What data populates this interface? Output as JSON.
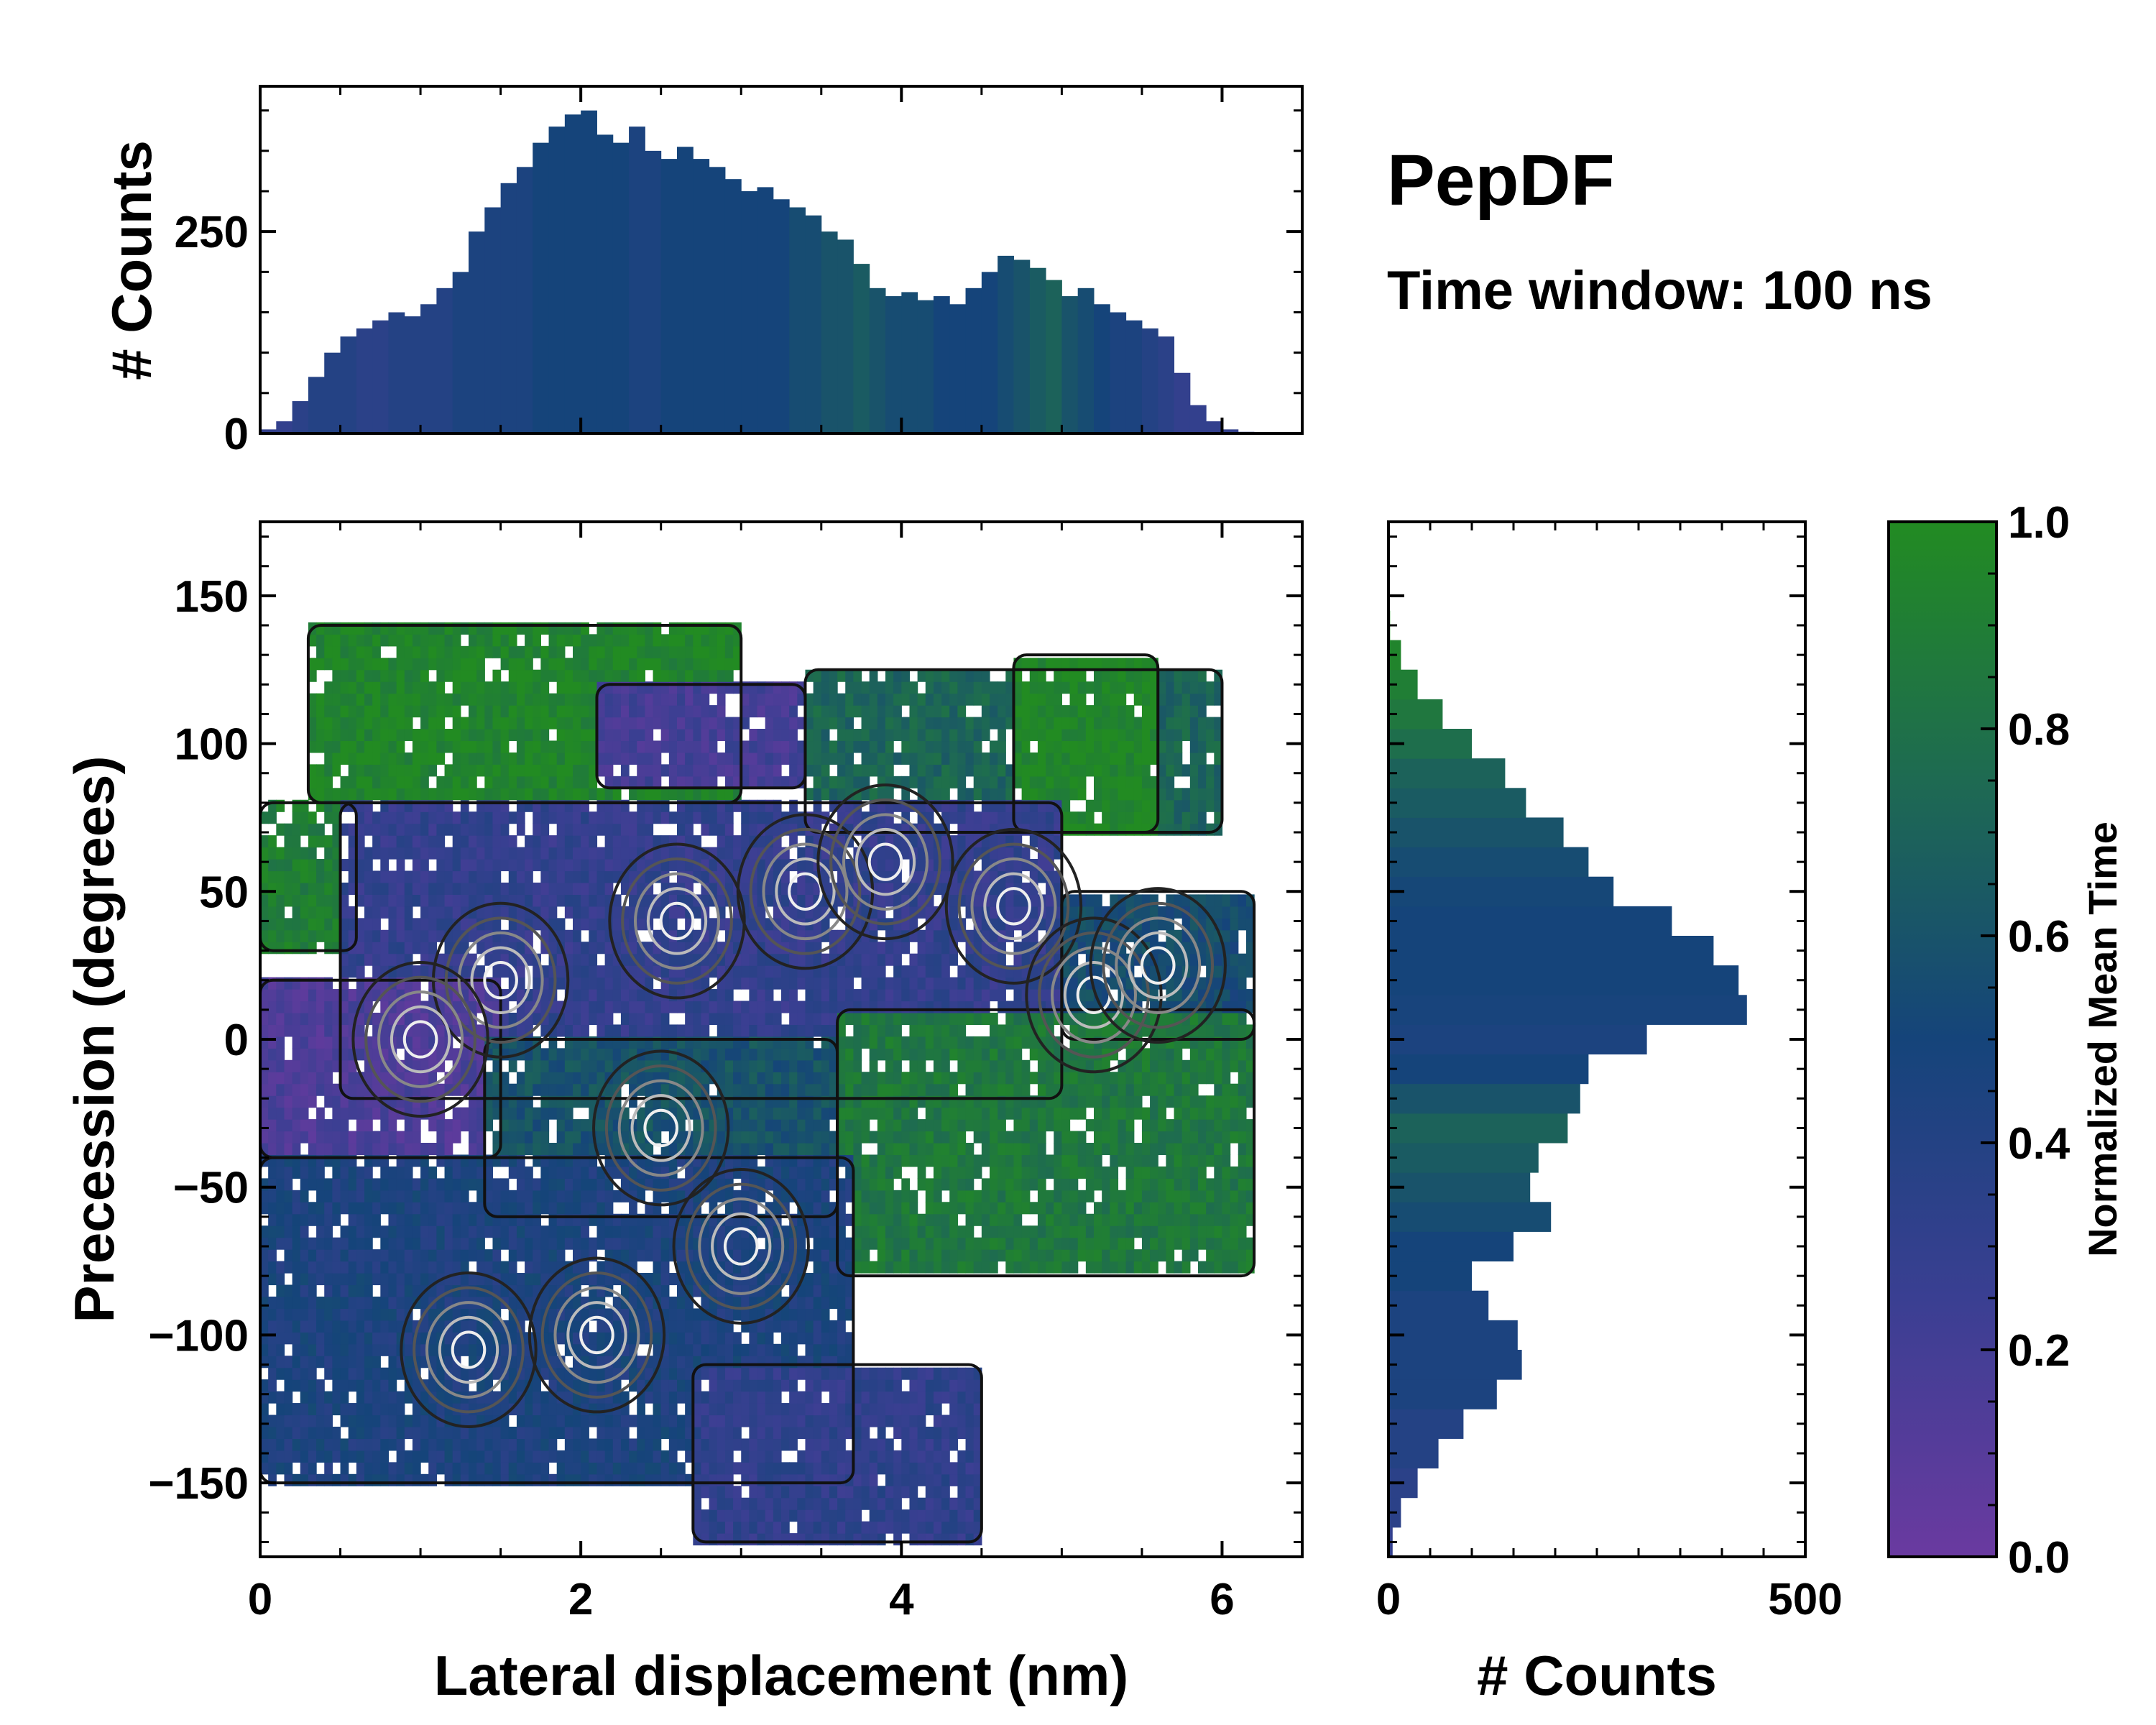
{
  "title": "PepDF",
  "subtitle": "Time window: 100 ns",
  "colors": {
    "low": "#6a3aa0",
    "mid": "#15447a",
    "high": "#228b22",
    "frame": "#000000"
  },
  "chart_data": [
    {
      "id": "top-histogram",
      "type": "bar",
      "ylabel": "# Counts",
      "xlim": [
        0,
        6.5
      ],
      "ylim": [
        0,
        430
      ],
      "yticks": [
        0,
        250
      ],
      "x_centers": [
        0.05,
        0.15,
        0.25,
        0.35,
        0.45,
        0.55,
        0.65,
        0.75,
        0.85,
        0.95,
        1.05,
        1.15,
        1.25,
        1.35,
        1.45,
        1.55,
        1.65,
        1.75,
        1.85,
        1.95,
        2.05,
        2.15,
        2.25,
        2.35,
        2.45,
        2.55,
        2.65,
        2.75,
        2.85,
        2.95,
        3.05,
        3.15,
        3.25,
        3.35,
        3.45,
        3.55,
        3.65,
        3.75,
        3.85,
        3.95,
        4.05,
        4.15,
        4.25,
        4.35,
        4.45,
        4.55,
        4.65,
        4.75,
        4.85,
        4.95,
        5.05,
        5.15,
        5.25,
        5.35,
        5.45,
        5.55,
        5.65,
        5.75,
        5.85,
        5.95,
        6.05,
        6.15,
        6.25,
        6.35,
        6.45
      ],
      "values": [
        5,
        15,
        40,
        70,
        100,
        120,
        130,
        140,
        150,
        145,
        160,
        180,
        200,
        250,
        280,
        310,
        330,
        360,
        380,
        395,
        400,
        370,
        360,
        380,
        350,
        340,
        355,
        340,
        330,
        315,
        300,
        305,
        290,
        280,
        270,
        250,
        240,
        210,
        180,
        170,
        175,
        165,
        170,
        160,
        180,
        200,
        220,
        215,
        205,
        190,
        170,
        180,
        160,
        150,
        140,
        130,
        120,
        75,
        35,
        15,
        5,
        2,
        1,
        0,
        0
      ],
      "mean_time": [
        0.3,
        0.3,
        0.35,
        0.4,
        0.4,
        0.4,
        0.35,
        0.35,
        0.4,
        0.4,
        0.4,
        0.4,
        0.45,
        0.45,
        0.45,
        0.45,
        0.45,
        0.5,
        0.5,
        0.5,
        0.5,
        0.5,
        0.5,
        0.45,
        0.45,
        0.5,
        0.5,
        0.5,
        0.5,
        0.5,
        0.5,
        0.5,
        0.5,
        0.55,
        0.55,
        0.6,
        0.6,
        0.65,
        0.6,
        0.55,
        0.55,
        0.55,
        0.5,
        0.5,
        0.5,
        0.5,
        0.55,
        0.6,
        0.65,
        0.7,
        0.6,
        0.55,
        0.5,
        0.45,
        0.45,
        0.4,
        0.35,
        0.3,
        0.3,
        0.3,
        0.3,
        0.3,
        0.3,
        0.3,
        0.3
      ]
    },
    {
      "id": "main-2d-histogram",
      "type": "heatmap",
      "xlabel": "Lateral displacement (nm)",
      "ylabel": "Precession (degrees)",
      "xlim": [
        0,
        6.5
      ],
      "ylim": [
        -175,
        175
      ],
      "xticks": [
        0,
        2,
        4,
        6
      ],
      "yticks": [
        -150,
        -100,
        -50,
        0,
        50,
        100,
        150
      ],
      "regions": [
        {
          "label": "upper-left",
          "x": [
            0.3,
            3.0
          ],
          "y": [
            80,
            140
          ],
          "mean_time": 0.95
        },
        {
          "label": "upper-middle",
          "x": [
            2.1,
            3.4
          ],
          "y": [
            85,
            120
          ],
          "mean_time": 0.2
        },
        {
          "label": "upper-right",
          "x": [
            3.4,
            6.0
          ],
          "y": [
            70,
            125
          ],
          "mean_time": 0.72
        },
        {
          "label": "far-upper-right",
          "x": [
            4.7,
            5.6
          ],
          "y": [
            70,
            130
          ],
          "mean_time": 0.97
        },
        {
          "label": "left-middle",
          "x": [
            0.0,
            0.6
          ],
          "y": [
            30,
            80
          ],
          "mean_time": 0.9
        },
        {
          "label": "center",
          "x": [
            0.5,
            5.0
          ],
          "y": [
            -20,
            80
          ],
          "mean_time": 0.3
        },
        {
          "label": "right-middle",
          "x": [
            5.0,
            6.2
          ],
          "y": [
            0,
            50
          ],
          "mean_time": 0.55
        },
        {
          "label": "left",
          "x": [
            0.0,
            1.5
          ],
          "y": [
            -40,
            20
          ],
          "mean_time": 0.15
        },
        {
          "label": "lower-center",
          "x": [
            1.4,
            3.6
          ],
          "y": [
            -60,
            0
          ],
          "mean_time": 0.6
        },
        {
          "label": "lower-right",
          "x": [
            3.6,
            6.2
          ],
          "y": [
            -80,
            10
          ],
          "mean_time": 0.85
        },
        {
          "label": "lower-left",
          "x": [
            0.0,
            3.7
          ],
          "y": [
            -150,
            -40
          ],
          "mean_time": 0.45
        },
        {
          "label": "bottom",
          "x": [
            2.7,
            4.5
          ],
          "y": [
            -170,
            -110
          ],
          "mean_time": 0.32
        }
      ],
      "density_peaks": [
        {
          "x": 1.5,
          "y": 20
        },
        {
          "x": 3.4,
          "y": 50
        },
        {
          "x": 3.9,
          "y": 60
        },
        {
          "x": 4.7,
          "y": 45
        },
        {
          "x": 5.2,
          "y": 15
        },
        {
          "x": 5.6,
          "y": 25
        },
        {
          "x": 2.6,
          "y": 40
        },
        {
          "x": 2.5,
          "y": -30
        },
        {
          "x": 2.1,
          "y": -100
        },
        {
          "x": 1.3,
          "y": -105
        },
        {
          "x": 1.0,
          "y": 0
        },
        {
          "x": 3.0,
          "y": -70
        }
      ]
    },
    {
      "id": "right-histogram",
      "type": "bar",
      "orientation": "horizontal",
      "xlabel": "# Counts",
      "xlim": [
        0,
        500
      ],
      "xticks": [
        0,
        500
      ],
      "ylim": [
        -175,
        175
      ],
      "y_centers": [
        -170,
        -160,
        -150,
        -140,
        -130,
        -120,
        -110,
        -100,
        -90,
        -80,
        -70,
        -60,
        -50,
        -40,
        -30,
        -20,
        -10,
        0,
        10,
        20,
        30,
        40,
        50,
        60,
        70,
        80,
        90,
        100,
        110,
        120,
        130,
        140
      ],
      "values": [
        5,
        15,
        35,
        60,
        90,
        130,
        160,
        155,
        120,
        100,
        150,
        195,
        170,
        180,
        215,
        230,
        240,
        310,
        430,
        420,
        390,
        340,
        270,
        240,
        210,
        165,
        140,
        100,
        65,
        35,
        15,
        2
      ],
      "mean_time": [
        0.3,
        0.35,
        0.35,
        0.4,
        0.4,
        0.45,
        0.45,
        0.45,
        0.45,
        0.5,
        0.5,
        0.55,
        0.6,
        0.65,
        0.7,
        0.6,
        0.5,
        0.45,
        0.48,
        0.5,
        0.5,
        0.5,
        0.52,
        0.55,
        0.6,
        0.65,
        0.7,
        0.78,
        0.85,
        0.9,
        0.95,
        0.97
      ]
    },
    {
      "id": "colorbar",
      "type": "colorbar",
      "label": "Normalized Mean Time",
      "ticks": [
        0.0,
        0.2,
        0.4,
        0.6,
        0.8,
        1.0
      ],
      "tick_labels": [
        "0.0",
        "0.2",
        "0.4",
        "0.6",
        "0.8",
        "1.0"
      ]
    }
  ]
}
